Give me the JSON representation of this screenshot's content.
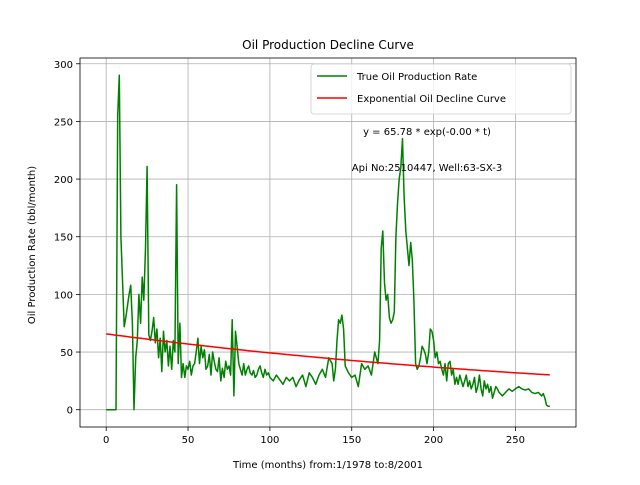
{
  "chart_data": {
    "type": "line",
    "title": "Oil Production Decline Curve",
    "xlabel": "Time (months) from:1/1978 to:8/2001",
    "ylabel": "Oil Production Rate (bbl/month)",
    "xlim": [
      -16,
      287
    ],
    "ylim": [
      -15,
      305
    ],
    "xticks": [
      0,
      50,
      100,
      150,
      200,
      250
    ],
    "yticks": [
      0,
      50,
      100,
      150,
      200,
      250,
      300
    ],
    "grid": true,
    "legend_position": "top-right",
    "annotations": [
      "y = 65.78 * exp(-0.00 * t)",
      "Api No:2510447, Well:63-SX-3"
    ],
    "series": [
      {
        "name": "True Oil Production Rate",
        "color": "#008000",
        "points": [
          [
            0,
            0
          ],
          [
            6,
            0
          ],
          [
            7,
            255
          ],
          [
            8,
            290
          ],
          [
            9,
            150
          ],
          [
            10,
            110
          ],
          [
            11,
            72
          ],
          [
            12,
            80
          ],
          [
            14,
            100
          ],
          [
            15,
            108
          ],
          [
            16,
            75
          ],
          [
            17,
            0
          ],
          [
            18,
            45
          ],
          [
            19,
            60
          ],
          [
            20,
            100
          ],
          [
            21,
            75
          ],
          [
            22,
            115
          ],
          [
            23,
            95
          ],
          [
            24,
            140
          ],
          [
            25,
            211
          ],
          [
            26,
            65
          ],
          [
            27,
            60
          ],
          [
            28,
            68
          ],
          [
            29,
            80
          ],
          [
            30,
            58
          ],
          [
            31,
            70
          ],
          [
            32,
            45
          ],
          [
            33,
            62
          ],
          [
            34,
            33
          ],
          [
            35,
            68
          ],
          [
            36,
            50
          ],
          [
            37,
            60
          ],
          [
            38,
            38
          ],
          [
            39,
            55
          ],
          [
            40,
            35
          ],
          [
            41,
            60
          ],
          [
            42,
            50
          ],
          [
            43,
            195
          ],
          [
            44,
            40
          ],
          [
            45,
            75
          ],
          [
            46,
            28
          ],
          [
            47,
            40
          ],
          [
            48,
            28
          ],
          [
            49,
            38
          ],
          [
            50,
            35
          ],
          [
            51,
            42
          ],
          [
            52,
            30
          ],
          [
            53,
            38
          ],
          [
            54,
            40
          ],
          [
            55,
            50
          ],
          [
            56,
            62
          ],
          [
            57,
            40
          ],
          [
            58,
            55
          ],
          [
            59,
            45
          ],
          [
            60,
            52
          ],
          [
            61,
            35
          ],
          [
            62,
            38
          ],
          [
            63,
            48
          ],
          [
            64,
            30
          ],
          [
            65,
            50
          ],
          [
            66,
            42
          ],
          [
            67,
            35
          ],
          [
            68,
            33
          ],
          [
            69,
            45
          ],
          [
            70,
            25
          ],
          [
            71,
            36
          ],
          [
            72,
            28
          ],
          [
            73,
            42
          ],
          [
            74,
            35
          ],
          [
            75,
            38
          ],
          [
            76,
            30
          ],
          [
            77,
            78
          ],
          [
            78,
            12
          ],
          [
            79,
            68
          ],
          [
            80,
            55
          ],
          [
            81,
            40
          ],
          [
            82,
            35
          ],
          [
            83,
            30
          ],
          [
            84,
            40
          ],
          [
            85,
            30
          ],
          [
            86,
            35
          ],
          [
            87,
            38
          ],
          [
            88,
            32
          ],
          [
            89,
            30
          ],
          [
            90,
            34
          ],
          [
            91,
            28
          ],
          [
            92,
            30
          ],
          [
            93,
            35
          ],
          [
            94,
            38
          ],
          [
            95,
            32
          ],
          [
            96,
            28
          ],
          [
            97,
            35
          ],
          [
            98,
            30
          ],
          [
            99,
            32
          ],
          [
            100,
            28
          ],
          [
            102,
            25
          ],
          [
            104,
            30
          ],
          [
            106,
            26
          ],
          [
            108,
            22
          ],
          [
            110,
            28
          ],
          [
            112,
            25
          ],
          [
            114,
            28
          ],
          [
            116,
            20
          ],
          [
            118,
            26
          ],
          [
            120,
            30
          ],
          [
            122,
            20
          ],
          [
            124,
            32
          ],
          [
            126,
            28
          ],
          [
            128,
            22
          ],
          [
            130,
            30
          ],
          [
            132,
            35
          ],
          [
            134,
            28
          ],
          [
            136,
            45
          ],
          [
            138,
            40
          ],
          [
            139,
            25
          ],
          [
            140,
            35
          ],
          [
            141,
            60
          ],
          [
            142,
            78
          ],
          [
            143,
            75
          ],
          [
            144,
            82
          ],
          [
            145,
            70
          ],
          [
            146,
            38
          ],
          [
            148,
            32
          ],
          [
            150,
            28
          ],
          [
            152,
            30
          ],
          [
            154,
            20
          ],
          [
            156,
            40
          ],
          [
            158,
            35
          ],
          [
            160,
            38
          ],
          [
            162,
            30
          ],
          [
            164,
            50
          ],
          [
            166,
            40
          ],
          [
            167,
            60
          ],
          [
            168,
            140
          ],
          [
            169,
            155
          ],
          [
            170,
            110
          ],
          [
            171,
            95
          ],
          [
            172,
            100
          ],
          [
            173,
            80
          ],
          [
            174,
            75
          ],
          [
            175,
            78
          ],
          [
            176,
            85
          ],
          [
            177,
            150
          ],
          [
            178,
            180
          ],
          [
            179,
            200
          ],
          [
            180,
            210
          ],
          [
            181,
            235
          ],
          [
            182,
            185
          ],
          [
            183,
            155
          ],
          [
            184,
            140
          ],
          [
            185,
            125
          ],
          [
            186,
            145
          ],
          [
            187,
            130
          ],
          [
            188,
            95
          ],
          [
            189,
            40
          ],
          [
            190,
            35
          ],
          [
            191,
            38
          ],
          [
            192,
            45
          ],
          [
            193,
            55
          ],
          [
            194,
            52
          ],
          [
            195,
            48
          ],
          [
            196,
            40
          ],
          [
            197,
            50
          ],
          [
            198,
            70
          ],
          [
            199,
            68
          ],
          [
            200,
            60
          ],
          [
            201,
            45
          ],
          [
            202,
            50
          ],
          [
            203,
            40
          ],
          [
            204,
            42
          ],
          [
            205,
            35
          ],
          [
            206,
            30
          ],
          [
            207,
            40
          ],
          [
            208,
            25
          ],
          [
            209,
            40
          ],
          [
            210,
            42
          ],
          [
            211,
            30
          ],
          [
            212,
            35
          ],
          [
            213,
            22
          ],
          [
            214,
            28
          ],
          [
            215,
            22
          ],
          [
            216,
            30
          ],
          [
            218,
            20
          ],
          [
            219,
            25
          ],
          [
            220,
            30
          ],
          [
            221,
            20
          ],
          [
            222,
            25
          ],
          [
            223,
            18
          ],
          [
            224,
            22
          ],
          [
            225,
            28
          ],
          [
            226,
            15
          ],
          [
            227,
            20
          ],
          [
            228,
            30
          ],
          [
            229,
            18
          ],
          [
            230,
            12
          ],
          [
            231,
            25
          ],
          [
            232,
            18
          ],
          [
            233,
            22
          ],
          [
            234,
            15
          ],
          [
            235,
            20
          ],
          [
            236,
            10
          ],
          [
            237,
            15
          ],
          [
            238,
            20
          ],
          [
            239,
            18
          ],
          [
            240,
            15
          ],
          [
            242,
            12
          ],
          [
            244,
            15
          ],
          [
            246,
            18
          ],
          [
            248,
            16
          ],
          [
            250,
            18
          ],
          [
            252,
            20
          ],
          [
            254,
            18
          ],
          [
            256,
            17
          ],
          [
            258,
            18
          ],
          [
            260,
            15
          ],
          [
            262,
            14
          ],
          [
            264,
            15
          ],
          [
            266,
            12
          ],
          [
            267,
            14
          ],
          [
            268,
            10
          ],
          [
            269,
            4
          ],
          [
            270,
            3
          ],
          [
            271,
            3
          ]
        ]
      },
      {
        "name": "Exponential Oil Decline Curve",
        "color": "#ff0000",
        "model": {
          "a": 65.78,
          "b": 0.00288
        },
        "x_range": [
          0,
          271
        ]
      }
    ]
  }
}
